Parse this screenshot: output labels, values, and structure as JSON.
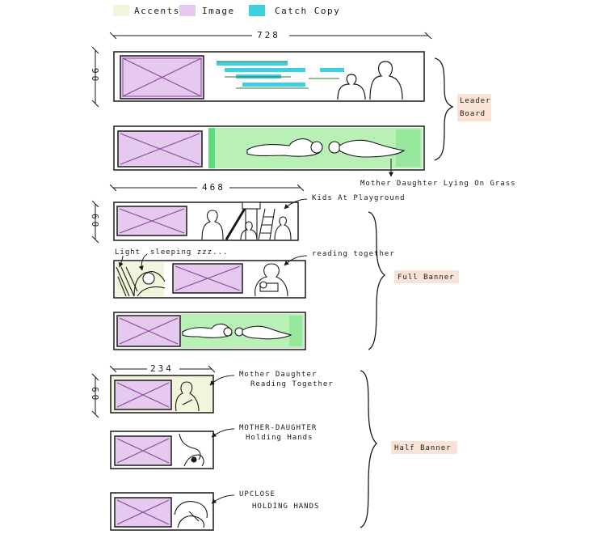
{
  "legend": {
    "accents": "Accents",
    "image": "Image",
    "catch_copy": "Catch Copy"
  },
  "colors": {
    "accent": "#f1f5dc",
    "image": "#e6c9ee",
    "image_stroke": "#8a4a9a",
    "catch_copy": "#3fd0e0",
    "accent_green": "#b9f0b5",
    "accent_green_dark": "#3ccf6a",
    "label_peach": "#f9e3d6"
  },
  "dimensions": {
    "leader_width": "728",
    "leader_height": "90",
    "full_width": "468",
    "full_height": "60",
    "half_width": "234",
    "half_height": "60"
  },
  "groups": {
    "leader_board": [
      "Leader",
      "Board"
    ],
    "full_banner": "Full Banner",
    "half_banner": "Half Banner"
  },
  "annotations": {
    "mother_daughter_grass": "Mother Daughter Lying On Grass",
    "kids_playground": "Kids At Playground",
    "light": "Light",
    "sleeping": "sleeping zzz...",
    "reading_together": "reading together",
    "md_reading": [
      "Mother Daughter",
      "Reading Together"
    ],
    "md_holding": [
      "MOTHER-DAUGHTER",
      "Holding Hands"
    ],
    "upclose": [
      "UPCLOSE",
      "HOLDING HANDS"
    ]
  }
}
